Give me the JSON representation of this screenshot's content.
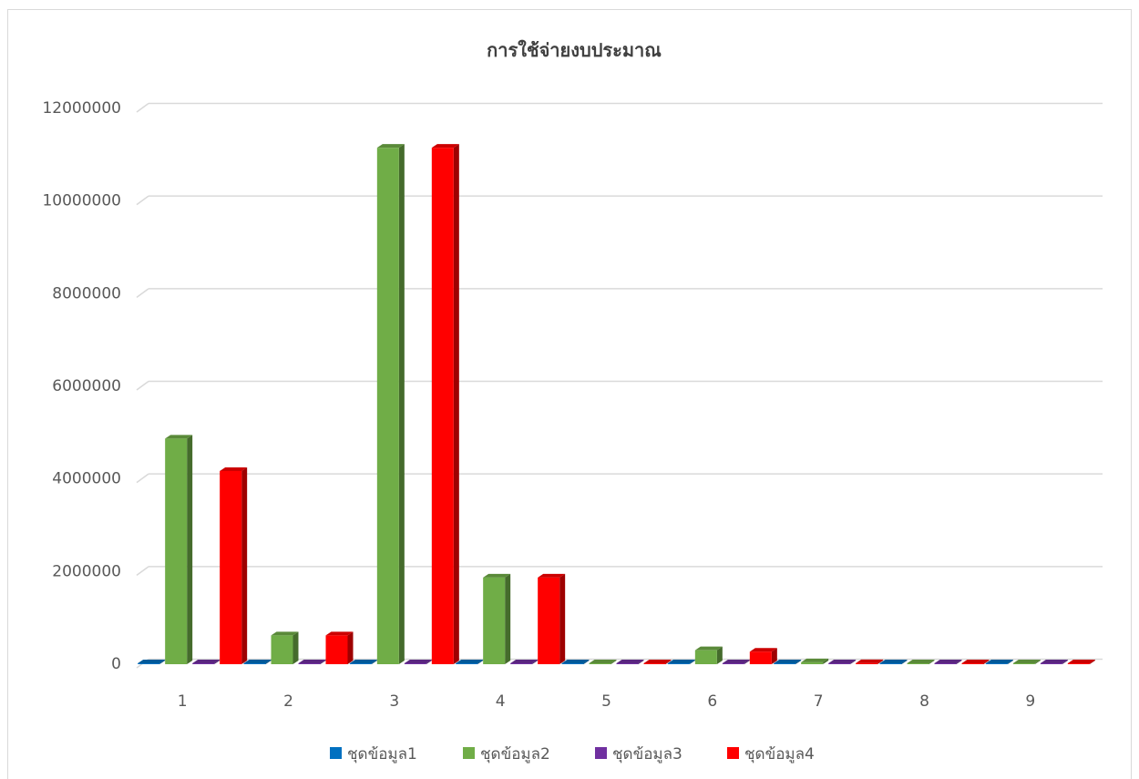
{
  "chart_data": {
    "type": "bar",
    "title": "การใช้จ่ายงบประมาณ",
    "xlabel": "",
    "ylabel": "",
    "categories": [
      "1",
      "2",
      "3",
      "4",
      "5",
      "6",
      "7",
      "8",
      "9"
    ],
    "ylim": [
      0,
      12000000
    ],
    "yticks": [
      "0",
      "2000000",
      "4000000",
      "6000000",
      "8000000",
      "10000000",
      "12000000"
    ],
    "grid": true,
    "legend_position": "bottom",
    "series": [
      {
        "name": "ชุดข้อมูล1",
        "color": "#0070c0",
        "values": [
          0,
          0,
          0,
          0,
          0,
          0,
          0,
          0,
          0
        ]
      },
      {
        "name": "ชุดข้อมูล2",
        "color": "#70ad47",
        "values": [
          4950000,
          700000,
          11230000,
          1950000,
          20000,
          380000,
          120000,
          10000,
          60000
        ]
      },
      {
        "name": "ชุดข้อมูล3",
        "color": "#7030a0",
        "values": [
          0,
          0,
          0,
          0,
          0,
          0,
          0,
          0,
          0
        ]
      },
      {
        "name": "ชุดข้อมูล4",
        "color": "#ff0000",
        "values": [
          4250000,
          700000,
          11230000,
          1950000,
          20000,
          350000,
          100000,
          10000,
          50000
        ]
      }
    ]
  }
}
